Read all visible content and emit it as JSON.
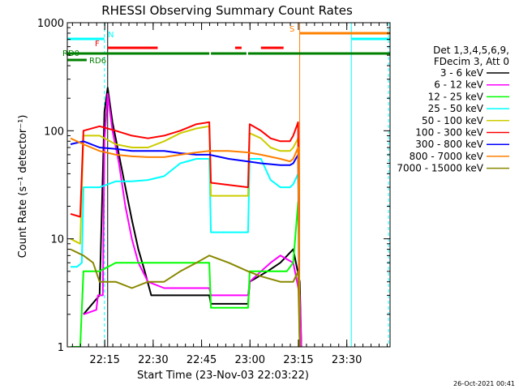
{
  "chart_data": {
    "type": "line",
    "title": "RHESSI Observing Summary Count Rates",
    "xlabel": "Start Time (23-Nov-03 22:03:22)",
    "ylabel": "Count Rate (s⁻¹ detector⁻¹)",
    "yscale": "log",
    "ylim": [
      1,
      1000
    ],
    "xlim_minutes": [
      0,
      100
    ],
    "x_ticks": [
      {
        "label": "22:15",
        "min": 11.6
      },
      {
        "label": "22:30",
        "min": 26.6
      },
      {
        "label": "22:45",
        "min": 41.6
      },
      {
        "label": "23:00",
        "min": 56.6
      },
      {
        "label": "23:15",
        "min": 71.6
      },
      {
        "label": "23:30",
        "min": 86.6
      }
    ],
    "y_ticks": [
      {
        "label": "1",
        "value": 1
      },
      {
        "label": "10",
        "value": 10
      },
      {
        "label": "100",
        "value": 100
      },
      {
        "label": "1000",
        "value": 1000
      }
    ],
    "legend": {
      "placement": "right",
      "header": [
        "Det 1,3,4,5,6,9,",
        "FDecim 3, Att 0"
      ]
    },
    "series": [
      {
        "name": "3 - 6 keV",
        "color": "#000000",
        "points": [
          [
            5,
            2
          ],
          [
            10,
            3
          ],
          [
            11.5,
            150
          ],
          [
            12.5,
            250
          ],
          [
            14,
            120
          ],
          [
            16,
            60
          ],
          [
            18,
            30
          ],
          [
            20,
            15
          ],
          [
            22,
            8
          ],
          [
            24,
            5
          ],
          [
            26,
            3
          ],
          [
            30,
            3
          ],
          [
            35,
            3
          ],
          [
            40,
            3
          ],
          [
            44,
            3
          ],
          [
            44.5,
            2.5
          ],
          [
            56,
            2.5
          ],
          [
            56.5,
            4
          ],
          [
            62,
            5
          ],
          [
            66,
            6
          ],
          [
            70,
            8
          ],
          [
            72,
            4
          ],
          [
            72.5,
            1
          ]
        ]
      },
      {
        "name": "6 - 12 keV",
        "color": "#ff00ff",
        "points": [
          [
            5,
            2
          ],
          [
            9,
            2.2
          ],
          [
            9.5,
            3
          ],
          [
            11,
            3
          ],
          [
            11.5,
            80
          ],
          [
            12.5,
            220
          ],
          [
            14,
            100
          ],
          [
            16,
            50
          ],
          [
            18,
            20
          ],
          [
            20,
            10
          ],
          [
            22,
            6
          ],
          [
            25,
            4
          ],
          [
            30,
            3.5
          ],
          [
            38,
            3.5
          ],
          [
            44,
            3.5
          ],
          [
            44.5,
            3
          ],
          [
            56,
            3
          ],
          [
            56.5,
            4
          ],
          [
            60,
            5
          ],
          [
            63,
            6
          ],
          [
            66,
            7
          ],
          [
            70,
            6
          ],
          [
            72,
            3
          ],
          [
            72.5,
            1
          ]
        ]
      },
      {
        "name": "12 - 25 keV",
        "color": "#00ff00",
        "points": [
          [
            1,
            1
          ],
          [
            4,
            1
          ],
          [
            5,
            5
          ],
          [
            10,
            5
          ],
          [
            15,
            6
          ],
          [
            20,
            6
          ],
          [
            25,
            6
          ],
          [
            30,
            6
          ],
          [
            35,
            6
          ],
          [
            40,
            6
          ],
          [
            44,
            6
          ],
          [
            44.5,
            2.3
          ],
          [
            56,
            2.3
          ],
          [
            56.5,
            5
          ],
          [
            62,
            5
          ],
          [
            68,
            5
          ],
          [
            70,
            6
          ],
          [
            71.5,
            22
          ],
          [
            72,
            1
          ]
        ]
      },
      {
        "name": "25 - 50 keV",
        "color": "#00ffff",
        "points": [
          [
            1,
            5.5
          ],
          [
            3,
            5.5
          ],
          [
            4.5,
            6
          ],
          [
            5,
            30
          ],
          [
            10,
            30
          ],
          [
            15,
            34
          ],
          [
            20,
            34
          ],
          [
            25,
            35
          ],
          [
            30,
            38
          ],
          [
            35,
            50
          ],
          [
            40,
            55
          ],
          [
            44,
            55
          ],
          [
            44.5,
            11.5
          ],
          [
            56,
            11.5
          ],
          [
            56.5,
            55
          ],
          [
            60,
            55
          ],
          [
            63,
            35
          ],
          [
            66,
            30
          ],
          [
            69,
            30
          ],
          [
            70,
            32
          ],
          [
            71.5,
            40
          ],
          [
            72,
            1
          ]
        ]
      },
      {
        "name": "50 - 100 keV",
        "color": "#cccc00",
        "points": [
          [
            1,
            10
          ],
          [
            4,
            9
          ],
          [
            5,
            90
          ],
          [
            10,
            90
          ],
          [
            15,
            75
          ],
          [
            20,
            70
          ],
          [
            25,
            70
          ],
          [
            30,
            80
          ],
          [
            35,
            95
          ],
          [
            40,
            105
          ],
          [
            44,
            110
          ],
          [
            44.5,
            25
          ],
          [
            56,
            25
          ],
          [
            56.5,
            95
          ],
          [
            60,
            85
          ],
          [
            63,
            70
          ],
          [
            66,
            65
          ],
          [
            69,
            65
          ],
          [
            70,
            70
          ],
          [
            71.5,
            85
          ],
          [
            72,
            1
          ]
        ]
      },
      {
        "name": "100 - 300 keV",
        "color": "#ff0000",
        "points": [
          [
            1,
            17
          ],
          [
            4,
            16
          ],
          [
            5,
            100
          ],
          [
            10,
            110
          ],
          [
            15,
            100
          ],
          [
            20,
            90
          ],
          [
            25,
            85
          ],
          [
            30,
            90
          ],
          [
            35,
            100
          ],
          [
            40,
            115
          ],
          [
            44,
            120
          ],
          [
            44.5,
            33
          ],
          [
            56,
            30
          ],
          [
            56.5,
            115
          ],
          [
            60,
            100
          ],
          [
            63,
            85
          ],
          [
            66,
            80
          ],
          [
            69,
            80
          ],
          [
            70,
            90
          ],
          [
            71.5,
            120
          ],
          [
            72,
            1
          ]
        ]
      },
      {
        "name": "300 - 800 keV",
        "color": "#0000ff",
        "points": [
          [
            1,
            75
          ],
          [
            5,
            80
          ],
          [
            10,
            70
          ],
          [
            15,
            68
          ],
          [
            20,
            65
          ],
          [
            25,
            65
          ],
          [
            30,
            65
          ],
          [
            35,
            62
          ],
          [
            40,
            60
          ],
          [
            44,
            60
          ],
          [
            50,
            55
          ],
          [
            56,
            52
          ],
          [
            60,
            50
          ],
          [
            66,
            48
          ],
          [
            69,
            48
          ],
          [
            70,
            50
          ],
          [
            71.5,
            60
          ],
          [
            72,
            1
          ]
        ]
      },
      {
        "name": "800 - 7000 keV",
        "color": "#ff8000",
        "points": [
          [
            1,
            85
          ],
          [
            5,
            75
          ],
          [
            10,
            65
          ],
          [
            15,
            60
          ],
          [
            20,
            58
          ],
          [
            25,
            57
          ],
          [
            30,
            57
          ],
          [
            35,
            60
          ],
          [
            40,
            63
          ],
          [
            44,
            65
          ],
          [
            50,
            65
          ],
          [
            56,
            63
          ],
          [
            60,
            60
          ],
          [
            66,
            55
          ],
          [
            69,
            52
          ],
          [
            70,
            55
          ],
          [
            71.5,
            70
          ],
          [
            72,
            1
          ]
        ]
      },
      {
        "name": "7000 - 15000 keV",
        "color": "#888800",
        "points": [
          [
            1,
            8
          ],
          [
            5,
            7
          ],
          [
            8,
            6
          ],
          [
            10,
            4
          ],
          [
            15,
            4
          ],
          [
            20,
            3.5
          ],
          [
            25,
            4
          ],
          [
            30,
            4
          ],
          [
            35,
            5
          ],
          [
            40,
            6
          ],
          [
            44,
            7
          ],
          [
            50,
            6
          ],
          [
            56,
            5
          ],
          [
            60,
            4.5
          ],
          [
            66,
            4
          ],
          [
            70,
            4
          ],
          [
            71.5,
            5
          ],
          [
            72,
            1
          ]
        ]
      }
    ],
    "flag_bars": [
      {
        "label": "N",
        "color": "#00ffff",
        "segments": [
          [
            0,
            11.5
          ]
        ]
      },
      {
        "label": "F",
        "color": "#ff0000",
        "segments": [
          [
            12.5,
            28
          ],
          [
            52,
            54
          ],
          [
            60,
            67
          ]
        ]
      },
      {
        "label": "S",
        "color": "#ff8000",
        "segments": [
          [
            72,
            100
          ]
        ]
      },
      {
        "label": "",
        "color": "#00ffff",
        "segments": [
          [
            88,
            100
          ]
        ]
      },
      {
        "label": "RD0",
        "color": "#008000",
        "segments": [
          [
            0,
            44
          ],
          [
            44.5,
            55.5
          ],
          [
            56,
            100
          ]
        ]
      },
      {
        "label": "RD6",
        "color": "#008000",
        "segments": [
          [
            0,
            6
          ]
        ]
      }
    ],
    "vertical_lines": [
      {
        "min": 11.5,
        "color": "#00ffff",
        "style": "dashed"
      },
      {
        "min": 12.5,
        "color": "#000000",
        "style": "solid"
      },
      {
        "min": 72,
        "color": "#ff8000",
        "style": "solid"
      },
      {
        "min": 88,
        "color": "#00ffff",
        "style": "solid"
      },
      {
        "min": 99.5,
        "color": "#00ffff",
        "style": "dashed"
      }
    ],
    "footer_timestamp": "26-Oct-2021 00:41"
  }
}
